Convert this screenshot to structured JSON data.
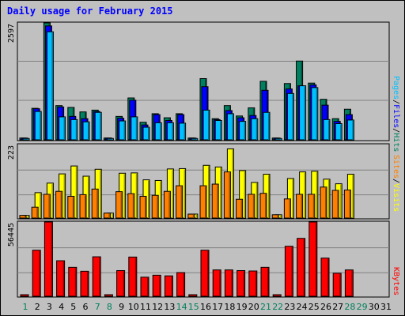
{
  "title": "Daily usage for February 2015",
  "colors": {
    "background": "#c0c0c0",
    "title": "#0000ff",
    "grid": "#808080",
    "pages": "#00c0ff",
    "files": "#0000ff",
    "hits": "#008060",
    "sites": "#ff8000",
    "visits": "#ffff00",
    "kbytes": "#ff0000",
    "weekday_label": "#000000",
    "weekend_label": "#00805c"
  },
  "chart_data": [
    {
      "type": "bar",
      "panel": "hits-files-pages",
      "ymax_label": "2597",
      "ymax": 2597,
      "legend": {
        "pages": "Pages",
        "files": "Files",
        "hits": "Hits",
        "sep": "/"
      },
      "days": [
        1,
        2,
        3,
        4,
        5,
        6,
        7,
        8,
        9,
        10,
        11,
        12,
        13,
        14,
        15,
        16,
        17,
        18,
        19,
        20,
        21,
        22,
        23,
        24,
        25,
        26,
        27,
        28,
        29,
        30,
        31
      ],
      "weekend_days": [
        1,
        7,
        8,
        14,
        15,
        21,
        22,
        28,
        29
      ],
      "series": [
        {
          "name": "Hits",
          "values": [
            40,
            700,
            2597,
            760,
            720,
            620,
            660,
            40,
            520,
            930,
            390,
            580,
            490,
            580,
            40,
            1360,
            470,
            760,
            530,
            710,
            1300,
            40,
            1250,
            1750,
            1260,
            900,
            470,
            680,
            0,
            0,
            0
          ]
        },
        {
          "name": "Files",
          "values": [
            40,
            690,
            2530,
            730,
            520,
            470,
            630,
            40,
            480,
            880,
            330,
            560,
            430,
            560,
            40,
            1180,
            450,
            650,
            490,
            540,
            1100,
            40,
            1130,
            1200,
            1220,
            770,
            410,
            560,
            0,
            0,
            0
          ]
        },
        {
          "name": "Pages",
          "values": [
            30,
            630,
            2400,
            510,
            450,
            400,
            610,
            30,
            420,
            510,
            280,
            380,
            380,
            370,
            30,
            660,
            430,
            580,
            410,
            470,
            610,
            30,
            1030,
            1200,
            1160,
            450,
            360,
            440,
            0,
            0,
            0
          ]
        }
      ]
    },
    {
      "type": "bar",
      "panel": "visits-sites",
      "ymax_label": "223",
      "ymax": 223,
      "legend": {
        "sites": "Sites",
        "visits": "Visits",
        "sep": "/"
      },
      "series": [
        {
          "name": "Visits",
          "values": [
            8,
            77,
            106,
            134,
            158,
            127,
            148,
            15,
            136,
            137,
            116,
            114,
            149,
            150,
            12,
            160,
            155,
            210,
            144,
            108,
            133,
            10,
            120,
            140,
            142,
            118,
            104,
            133,
            0,
            0,
            0
          ]
        },
        {
          "name": "Sites",
          "values": [
            8,
            33,
            72,
            81,
            66,
            71,
            88,
            15,
            80,
            74,
            66,
            69,
            81,
            98,
            12,
            98,
            103,
            140,
            57,
            72,
            75,
            10,
            58,
            72,
            72,
            94,
            84,
            85,
            0,
            0,
            0
          ]
        }
      ]
    },
    {
      "type": "bar",
      "panel": "kbytes",
      "ymax_label": "56445",
      "ymax": 56445,
      "legend": {
        "kbytes": "KBytes"
      },
      "series": [
        {
          "name": "KBytes",
          "values": [
            1200,
            35000,
            56445,
            27000,
            22000,
            19000,
            30000,
            1200,
            19500,
            29800,
            14500,
            16000,
            15500,
            18000,
            1200,
            35000,
            20000,
            20000,
            19500,
            19200,
            22000,
            1200,
            38000,
            44000,
            56445,
            29000,
            17500,
            20000,
            0,
            0,
            0
          ]
        }
      ]
    }
  ]
}
